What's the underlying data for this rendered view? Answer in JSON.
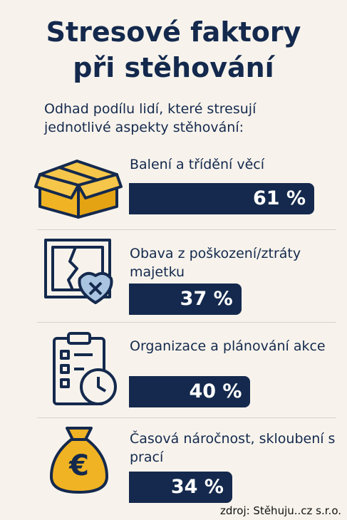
{
  "chart_data": {
    "type": "bar",
    "title": "Stresové faktory při stěhování",
    "subtitle": "Odhad podílu lidí, které stresují jednotlivé aspekty stěhování:",
    "categories": [
      "Balení a třídění věcí",
      "Obava z poškození/ztráty majetku",
      "Organizace a plánování akce",
      "Časová náročnost, skloubení s prací"
    ],
    "values": [
      61,
      37,
      40,
      34
    ],
    "value_labels": [
      "61 %",
      "37 %",
      "40 %",
      "34 %"
    ],
    "color": "#14294d",
    "source": "zdroj: Stěhuju..cz s.r.o."
  }
}
